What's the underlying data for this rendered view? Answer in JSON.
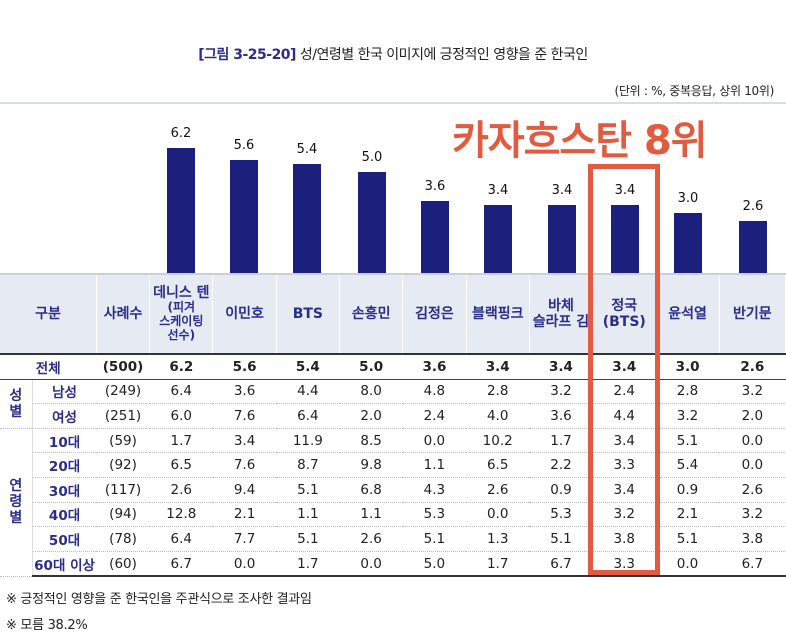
{
  "title": {
    "label": "[그림 3-25-20]",
    "text": "성/연령별 한국 이미지에 긍정적인 영향을 준 한국인"
  },
  "unit": "(단위 : %, 중복응답, 상위 10위)",
  "overlay_text": "카자흐스탄 8위",
  "chart_data": {
    "type": "bar",
    "title": "성/연령별 한국 이미지에 긍정적인 영향을 준 한국인",
    "categories": [
      "데니스 텐",
      "이민호",
      "BTS",
      "손흥민",
      "김정은",
      "블랙핑크",
      "바체슬라프 김",
      "정국(BTS)",
      "윤석열",
      "반기문"
    ],
    "values": [
      6.2,
      5.6,
      5.4,
      5.0,
      3.6,
      3.4,
      3.4,
      3.4,
      3.0,
      2.6
    ],
    "ylim": [
      0,
      6.2
    ],
    "xlabel": "",
    "ylabel": ""
  },
  "table": {
    "header": {
      "group": "구분",
      "n": "사례수",
      "cols": [
        [
          "데니스 텐",
          "(피겨",
          "스케이팅",
          "선수)"
        ],
        [
          "이민호"
        ],
        [
          "BTS"
        ],
        [
          "손흥민"
        ],
        [
          "김정은"
        ],
        [
          "블랙핑크"
        ],
        [
          "바체",
          "슬라프 김"
        ],
        [
          "정국",
          "(BTS)"
        ],
        [
          "윤석열"
        ],
        [
          "반기문"
        ]
      ]
    },
    "total": {
      "label": "전체",
      "n": "(500)",
      "values": [
        "6.2",
        "5.6",
        "5.4",
        "5.0",
        "3.6",
        "3.4",
        "3.4",
        "3.4",
        "3.0",
        "2.6"
      ]
    },
    "groups": [
      {
        "name": "성\n별",
        "rows": [
          {
            "label": "남성",
            "n": "(249)",
            "values": [
              "6.4",
              "3.6",
              "4.4",
              "8.0",
              "4.8",
              "2.8",
              "3.2",
              "2.4",
              "2.8",
              "3.2"
            ]
          },
          {
            "label": "여성",
            "n": "(251)",
            "values": [
              "6.0",
              "7.6",
              "6.4",
              "2.0",
              "2.4",
              "4.0",
              "3.6",
              "4.4",
              "3.2",
              "2.0"
            ]
          }
        ]
      },
      {
        "name": "연\n령\n별",
        "rows": [
          {
            "label": "10대",
            "n": "(59)",
            "values": [
              "1.7",
              "3.4",
              "11.9",
              "8.5",
              "0.0",
              "10.2",
              "1.7",
              "3.4",
              "5.1",
              "0.0"
            ]
          },
          {
            "label": "20대",
            "n": "(92)",
            "values": [
              "6.5",
              "7.6",
              "8.7",
              "9.8",
              "1.1",
              "6.5",
              "2.2",
              "3.3",
              "5.4",
              "0.0"
            ]
          },
          {
            "label": "30대",
            "n": "(117)",
            "values": [
              "2.6",
              "9.4",
              "5.1",
              "6.8",
              "4.3",
              "2.6",
              "0.9",
              "3.4",
              "0.9",
              "2.6"
            ]
          },
          {
            "label": "40대",
            "n": "(94)",
            "values": [
              "12.8",
              "2.1",
              "1.1",
              "1.1",
              "5.3",
              "0.0",
              "5.3",
              "3.2",
              "2.1",
              "3.2"
            ]
          },
          {
            "label": "50대",
            "n": "(78)",
            "values": [
              "6.4",
              "7.7",
              "5.1",
              "2.6",
              "5.1",
              "1.3",
              "5.1",
              "3.8",
              "5.1",
              "3.8"
            ]
          },
          {
            "label": "60대 이상",
            "n": "(60)",
            "values": [
              "6.7",
              "0.0",
              "1.7",
              "0.0",
              "5.0",
              "1.7",
              "6.7",
              "3.3",
              "0.0",
              "6.7"
            ]
          }
        ]
      }
    ]
  },
  "notes": [
    "※ 긍정적인 영향을 준 한국인을 주관식으로 조사한 결과임",
    "※ 모름 38.2%"
  ]
}
